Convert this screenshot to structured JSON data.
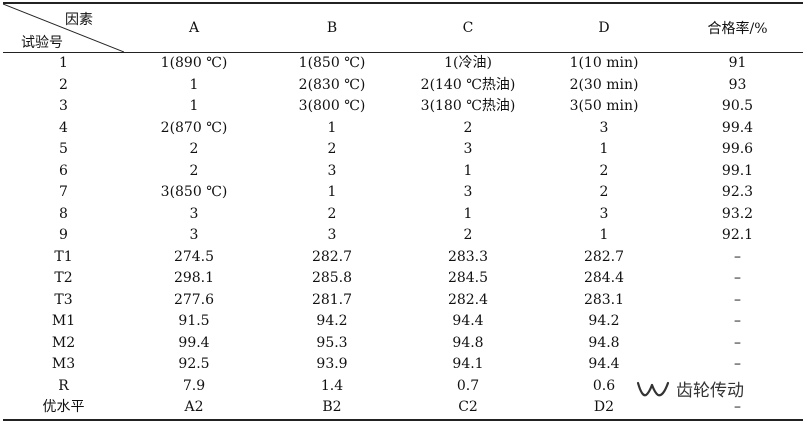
{
  "header": {
    "corner_top": "因素",
    "corner_bottom": "试验号",
    "columns": [
      "A",
      "B",
      "C",
      "D",
      "合格率/%"
    ]
  },
  "rows": [
    {
      "id": "1",
      "cells": [
        "1(890 ℃)",
        "1(850 ℃)",
        "1(冷油)",
        "1(10 min)",
        "91"
      ]
    },
    {
      "id": "2",
      "cells": [
        "1",
        "2(830 ℃)",
        "2(140 ℃热油)",
        "2(30 min)",
        "93"
      ]
    },
    {
      "id": "3",
      "cells": [
        "1",
        "3(800 ℃)",
        "3(180 ℃热油)",
        "3(50 min)",
        "90.5"
      ]
    },
    {
      "id": "4",
      "cells": [
        "2(870 ℃)",
        "1",
        "2",
        "3",
        "99.4"
      ]
    },
    {
      "id": "5",
      "cells": [
        "2",
        "2",
        "3",
        "1",
        "99.6"
      ]
    },
    {
      "id": "6",
      "cells": [
        "2",
        "3",
        "1",
        "2",
        "99.1"
      ]
    },
    {
      "id": "7",
      "cells": [
        "3(850 ℃)",
        "1",
        "3",
        "2",
        "92.3"
      ]
    },
    {
      "id": "8",
      "cells": [
        "3",
        "2",
        "1",
        "3",
        "93.2"
      ]
    },
    {
      "id": "9",
      "cells": [
        "3",
        "3",
        "2",
        "1",
        "92.1"
      ]
    },
    {
      "id": "T1",
      "cells": [
        "274.5",
        "282.7",
        "283.3",
        "282.7",
        "–"
      ]
    },
    {
      "id": "T2",
      "cells": [
        "298.1",
        "285.8",
        "284.5",
        "284.4",
        "–"
      ]
    },
    {
      "id": "T3",
      "cells": [
        "277.6",
        "281.7",
        "282.4",
        "283.1",
        "–"
      ]
    },
    {
      "id": "M1",
      "cells": [
        "91.5",
        "94.2",
        "94.4",
        "94.2",
        "–"
      ]
    },
    {
      "id": "M2",
      "cells": [
        "99.4",
        "95.3",
        "94.8",
        "94.8",
        "–"
      ]
    },
    {
      "id": "M3",
      "cells": [
        "92.5",
        "93.9",
        "94.1",
        "94.4",
        "–"
      ]
    },
    {
      "id": "R",
      "cells": [
        "7.9",
        "1.4",
        "0.7",
        "0.6",
        "–"
      ]
    },
    {
      "id": "优水平",
      "cells": [
        "A2",
        "B2",
        "C2",
        "D2",
        "–"
      ]
    }
  ],
  "watermark": {
    "icon": "wechat-channel-icon",
    "text": "齿轮传动"
  }
}
